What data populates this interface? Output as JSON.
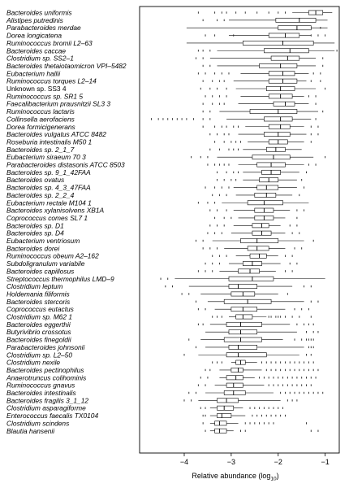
{
  "chart_data": {
    "type": "boxplot",
    "orientation": "horizontal",
    "xlabel": "Relative abundance (log",
    "xlabel_sub": "10",
    "xlabel_end": ")",
    "x_ticks": [
      -4,
      -3,
      -2,
      -1
    ],
    "x_tick_labels": [
      "−4",
      "−3",
      "−2",
      "−1"
    ],
    "xlim": [
      -4.95,
      -0.7
    ],
    "grid": false,
    "categories": [
      {
        "name": "Bacteroides uniformis",
        "italic": true
      },
      {
        "name": "Alistipes putredinis",
        "italic": true
      },
      {
        "name": "Parabacteroides merdae",
        "italic": true
      },
      {
        "name": "Dorea longicatena",
        "italic": true
      },
      {
        "name": "Ruminococcus bromii L2–63",
        "italic": true
      },
      {
        "name": "Bacteroides caccae",
        "italic": true
      },
      {
        "name": "Clostridium sp. SS2–1",
        "italic": true
      },
      {
        "name": "Bacteroides thetaiotaomicron VPI–5482",
        "italic": true
      },
      {
        "name": "Eubacterium hallii",
        "italic": true
      },
      {
        "name": "Ruminococcus torques L2–14",
        "italic": true
      },
      {
        "name": "Unknown sp. SS3 4",
        "italic": false
      },
      {
        "name": "Ruminococcus sp. SR1 5",
        "italic": true
      },
      {
        "name": "Faecalibacterium prausnitzii SL3 3",
        "italic": true
      },
      {
        "name": "Ruminococcus lactaris",
        "italic": true
      },
      {
        "name": "Collinsella aerofaciens",
        "italic": true
      },
      {
        "name": "Dorea formicigenerans",
        "italic": true
      },
      {
        "name": "Bacteroides vulgatus ATCC 8482",
        "italic": true
      },
      {
        "name": "Roseburia intestinalis M50 1",
        "italic": true
      },
      {
        "name": "Bacteroides sp. 2_1_7",
        "italic": true
      },
      {
        "name": "Eubacterium siraeum 70 3",
        "italic": true
      },
      {
        "name": "Parabacteroides distasonis ATCC 8503",
        "italic": true
      },
      {
        "name": "Bacteroides sp. 9_1_42FAA",
        "italic": true
      },
      {
        "name": "Bacteroides ovatus",
        "italic": true
      },
      {
        "name": "Bacteroides sp. 4_3_47FAA",
        "italic": true
      },
      {
        "name": "Bacteroides sp. 2_2_4",
        "italic": true
      },
      {
        "name": "Eubacterium rectale M104 1",
        "italic": true
      },
      {
        "name": "Bacteroides xylanisolvens XB1A",
        "italic": true
      },
      {
        "name": "Coprococcus comes SL7 1",
        "italic": true
      },
      {
        "name": "Bacteroides sp. D1",
        "italic": true
      },
      {
        "name": "Bacteroides sp. D4",
        "italic": true
      },
      {
        "name": "Eubacterium ventriosum",
        "italic": true
      },
      {
        "name": "Bacteroides dorei",
        "italic": true
      },
      {
        "name": "Ruminococcus obeum A2–162",
        "italic": true
      },
      {
        "name": "Subdoligranulum variabile",
        "italic": true
      },
      {
        "name": "Bacteroides capillosus",
        "italic": true
      },
      {
        "name": "Streptococcus thermophilus LMD–9",
        "italic": true
      },
      {
        "name": "Clostridium leptum",
        "italic": true
      },
      {
        "name": "Holdemania filiformis",
        "italic": true
      },
      {
        "name": "Bacteroides stercoris",
        "italic": true
      },
      {
        "name": "Coprococcus eutactus",
        "italic": true
      },
      {
        "name": "Clostridium sp. M62 1",
        "italic": true
      },
      {
        "name": "Bacteroides eggerthii",
        "italic": true
      },
      {
        "name": "Butyrivibrio crossotus",
        "italic": true
      },
      {
        "name": "Bacteroides finegoldii",
        "italic": true
      },
      {
        "name": "Parabacteroides johnsonii",
        "italic": true
      },
      {
        "name": "Clostridium sp. L2–50",
        "italic": true
      },
      {
        "name": "Clostridium nexile",
        "italic": true
      },
      {
        "name": "Bacteroides pectinophilus",
        "italic": true
      },
      {
        "name": "Anaerotruncus colihominis",
        "italic": true
      },
      {
        "name": "Ruminococcus gnavus",
        "italic": true
      },
      {
        "name": "Bacteroides intestinalis",
        "italic": true
      },
      {
        "name": "Bacteroides fragilis 3_1_12",
        "italic": true
      },
      {
        "name": "Clostridium asparagiforme",
        "italic": true
      },
      {
        "name": "Enterococcus faecalis TX0104",
        "italic": true
      },
      {
        "name": "Clostridium scindens",
        "italic": true
      },
      {
        "name": "Blautia hansenii",
        "italic": true
      }
    ],
    "boxes": [
      [
        -1.7,
        -1.35,
        -1.2,
        -1.05,
        -0.85
      ],
      [
        -3.05,
        -2.05,
        -1.55,
        -1.2,
        -0.95
      ],
      [
        -3.95,
        -2.0,
        -1.6,
        -1.3,
        -0.95
      ],
      [
        -3.05,
        -2.2,
        -1.85,
        -1.55,
        -1.3
      ],
      [
        -3.95,
        -2.75,
        -1.9,
        -1.25,
        -0.8
      ],
      [
        -3.3,
        -2.3,
        -1.75,
        -1.35,
        -0.8
      ],
      [
        -3.45,
        -2.15,
        -1.8,
        -1.55,
        -1.2
      ],
      [
        -3.3,
        -2.4,
        -1.95,
        -1.6,
        -1.2
      ],
      [
        -2.8,
        -2.2,
        -1.9,
        -1.65,
        -1.35
      ],
      [
        -2.95,
        -2.2,
        -1.9,
        -1.6,
        -1.4
      ],
      [
        -2.9,
        -2.25,
        -1.95,
        -1.65,
        -1.2
      ],
      [
        -2.8,
        -2.2,
        -1.95,
        -1.7,
        -1.45
      ],
      [
        -2.85,
        -2.1,
        -1.85,
        -1.65,
        -1.35
      ],
      [
        -3.25,
        -2.6,
        -2.0,
        -1.6,
        -1.15
      ],
      [
        -3.1,
        -2.3,
        -1.95,
        -1.7,
        -1.3
      ],
      [
        -2.7,
        -2.2,
        -1.95,
        -1.75,
        -1.45
      ],
      [
        -2.85,
        -2.3,
        -2.0,
        -1.75,
        -1.4
      ],
      [
        -2.65,
        -2.2,
        -2.0,
        -1.8,
        -1.45
      ],
      [
        -2.75,
        -2.25,
        -2.05,
        -1.85,
        -1.5
      ],
      [
        -3.3,
        -2.55,
        -2.1,
        -1.75,
        -1.25
      ],
      [
        -2.85,
        -2.45,
        -2.15,
        -1.85,
        -1.45
      ],
      [
        -2.75,
        -2.35,
        -2.15,
        -1.95,
        -1.55
      ],
      [
        -2.75,
        -2.4,
        -2.2,
        -2.0,
        -1.6
      ],
      [
        -2.95,
        -2.45,
        -2.25,
        -2.0,
        -1.6
      ],
      [
        -2.9,
        -2.5,
        -2.25,
        -2.05,
        -1.7
      ],
      [
        -3.2,
        -2.65,
        -2.3,
        -1.9,
        -1.35
      ],
      [
        -2.95,
        -2.5,
        -2.3,
        -2.1,
        -1.75
      ],
      [
        -2.85,
        -2.5,
        -2.3,
        -2.1,
        -1.85
      ],
      [
        -2.95,
        -2.55,
        -2.35,
        -2.2,
        -1.95
      ],
      [
        -3.0,
        -2.55,
        -2.35,
        -2.15,
        -1.85
      ],
      [
        -3.4,
        -2.8,
        -2.45,
        -2.0,
        -1.45
      ],
      [
        -3.15,
        -2.65,
        -2.45,
        -2.2,
        -1.85
      ],
      [
        -2.9,
        -2.6,
        -2.4,
        -2.25,
        -2.0
      ],
      [
        -3.05,
        -2.75,
        -2.55,
        -2.35,
        -1.95
      ],
      [
        -3.25,
        -2.85,
        -2.6,
        -2.4,
        -2.05
      ],
      [
        -4.2,
        -3.05,
        -2.55,
        -2.1,
        -1.0
      ],
      [
        -3.9,
        -3.05,
        -2.85,
        -2.45,
        -1.7
      ],
      [
        -3.65,
        -3.0,
        -2.75,
        -2.5,
        -2.0
      ],
      [
        -3.5,
        -3.15,
        -2.65,
        -2.15,
        -1.45
      ],
      [
        -3.35,
        -3.0,
        -2.75,
        -2.45,
        -1.85
      ],
      [
        -3.05,
        -2.9,
        -2.75,
        -2.55,
        -2.25
      ],
      [
        -3.45,
        -3.1,
        -2.8,
        -2.35,
        -1.75
      ],
      [
        -3.55,
        -3.05,
        -2.8,
        -2.45,
        -1.6
      ],
      [
        -3.65,
        -3.15,
        -2.8,
        -2.35,
        -1.9
      ],
      [
        -3.55,
        -3.05,
        -2.85,
        -2.45,
        -1.45
      ],
      [
        -3.7,
        -3.1,
        -2.85,
        -2.25,
        -1.55
      ],
      [
        -3.0,
        -2.9,
        -2.8,
        -2.7,
        -2.45
      ],
      [
        -3.25,
        -3.0,
        -2.85,
        -2.75,
        -2.35
      ],
      [
        -3.25,
        -3.1,
        -2.9,
        -2.75,
        -2.5
      ],
      [
        -3.35,
        -3.1,
        -2.95,
        -2.75,
        -2.3
      ],
      [
        -3.55,
        -3.15,
        -2.95,
        -2.7,
        -2.1
      ],
      [
        -3.7,
        -3.3,
        -3.1,
        -2.85,
        -1.95
      ],
      [
        -3.45,
        -3.3,
        -3.15,
        -2.95,
        -2.75
      ],
      [
        -3.45,
        -3.3,
        -3.2,
        -3.0,
        -2.7
      ],
      [
        -3.45,
        -3.35,
        -3.25,
        -3.1,
        -2.85
      ],
      [
        -3.45,
        -3.35,
        -3.25,
        -3.1,
        -2.95
      ]
    ],
    "outliers": [
      [
        -3.7,
        -3.35,
        -3.2,
        -3.1,
        -2.9,
        -2.7,
        -2.45,
        -2.2,
        -2.0,
        -1.85
      ],
      [
        -3.6,
        -3.3,
        -3.15
      ],
      [
        -1.1
      ],
      [
        -3.55,
        -3.35,
        -2.95,
        -1.3,
        -1.15,
        -1.0
      ],
      [],
      [
        -3.7,
        -3.6,
        -3.45,
        -0.75
      ],
      [
        -3.75,
        -3.6,
        -1.05
      ],
      [
        -3.6,
        -3.45,
        -1.05
      ],
      [
        -3.7,
        -3.55,
        -3.35,
        -3.2,
        -3.05,
        -1.25,
        -1.1
      ],
      [
        -3.6,
        -3.4,
        -3.25,
        -3.15,
        -1.3,
        -1.1
      ],
      [
        -3.65,
        -3.45,
        -3.3,
        -3.1,
        -1.0
      ],
      [
        -3.55,
        -3.4,
        -3.25,
        -3.1,
        -1.35,
        -1.2
      ],
      [
        -3.6,
        -3.4,
        -3.25,
        -3.15,
        -1.2
      ],
      [
        -3.6,
        -3.45,
        -1.05
      ],
      [
        -4.7,
        -4.55,
        -4.45,
        -4.35,
        -4.25,
        -4.15,
        -4.05,
        -3.95,
        -3.8,
        -3.6,
        -3.45,
        -1.2
      ],
      [
        -3.6,
        -3.35,
        -3.2,
        -3.1,
        -2.95,
        -2.85,
        -1.3,
        -1.15
      ],
      [
        -3.45,
        -3.3,
        -3.15,
        -3.05,
        -1.3,
        -1.15
      ],
      [
        -3.35,
        -3.15,
        -3.0,
        -2.9,
        -2.8,
        -1.3
      ],
      [
        -3.45,
        -3.25,
        -3.05,
        -2.95,
        -2.85
      ],
      [
        -3.85,
        -3.65,
        -3.5,
        -1.0
      ],
      [
        -3.5,
        -3.35,
        -3.25,
        -3.15,
        -3.05,
        -1.35,
        -1.2
      ],
      [
        -3.3,
        -3.1,
        -2.95,
        -2.85,
        -1.4
      ],
      [
        -3.3,
        -3.15,
        -3.0,
        -2.9,
        -1.5
      ],
      [
        -3.55,
        -3.35,
        -3.2,
        -3.05,
        -1.45
      ],
      [
        -3.4,
        -3.25,
        -3.1,
        -1.55
      ],
      [
        -3.7,
        -3.5,
        -3.35
      ],
      [
        -3.45,
        -3.3,
        -3.1,
        -1.6,
        -1.45
      ],
      [
        -3.35,
        -3.15,
        -3.0,
        -1.6
      ],
      [
        -3.45,
        -3.3,
        -3.15,
        -1.75,
        -1.6
      ],
      [
        -3.5,
        -3.35,
        -3.2,
        -1.7,
        -1.55
      ],
      [
        -3.75,
        -3.6,
        -1.25
      ],
      [
        -3.6,
        -3.45,
        -3.3,
        -1.65,
        -1.5
      ],
      [
        -3.4,
        -3.25,
        -3.1,
        -1.85,
        -1.7
      ],
      [
        -3.55,
        -3.4,
        -3.25,
        -1.75,
        -1.6
      ],
      [
        -3.7,
        -3.55,
        -3.4,
        -1.85,
        -1.7
      ],
      [
        -4.5,
        -4.35
      ],
      [
        -4.4,
        -4.25,
        -1.45,
        -1.3
      ],
      [
        -4.05,
        -3.9,
        -1.8
      ],
      [
        -3.75,
        -1.3,
        -1.15
      ],
      [
        -3.7,
        -3.55,
        -1.65,
        -1.5,
        -1.35
      ],
      [
        -3.4,
        -3.3,
        -3.2,
        -2.2,
        -2.15,
        -2.05,
        -2.0,
        -1.95,
        -1.85,
        -1.7,
        -1.55,
        -1.3
      ],
      [
        -3.7,
        -3.6,
        -1.6,
        -1.45,
        -1.35,
        -1.25
      ],
      [
        -1.4,
        -1.25,
        -1.15
      ],
      [
        -3.9,
        -1.65,
        -1.5,
        -1.4,
        -1.35,
        -1.3,
        -1.25
      ],
      [
        -3.75,
        -1.35,
        -1.3,
        -1.25
      ],
      [
        -4.0,
        -1.4,
        -1.3
      ],
      [
        -3.4,
        -3.3,
        -3.2,
        -2.35,
        -2.25,
        -2.15,
        -2.05,
        -1.95,
        -1.85,
        -1.75,
        -1.65,
        -1.55,
        -1.45,
        -1.35,
        -1.25
      ],
      [
        -3.55,
        -3.45,
        -2.25,
        -2.15,
        -2.05,
        -1.95,
        -1.85,
        -1.75,
        -1.65,
        -1.55,
        -1.45,
        -1.35,
        -1.25,
        -1.15
      ],
      [
        -3.65,
        -3.5,
        -2.4,
        -2.3,
        -2.2,
        -2.1,
        -2.0,
        -1.9,
        -1.8,
        -1.7,
        -1.6,
        -1.5,
        -1.4,
        -1.3,
        -1.2
      ],
      [
        -3.7,
        -3.55,
        -2.2,
        -2.1,
        -2.0,
        -1.9,
        -1.8,
        -1.7,
        -1.6,
        -1.5,
        -1.4,
        -1.3
      ],
      [
        -3.9,
        -3.75,
        -1.95,
        -1.85,
        -1.75,
        -1.65,
        -1.55,
        -1.45,
        -1.35,
        -1.25,
        -1.15,
        -1.05
      ],
      [
        -4.0,
        -3.85,
        -1.8,
        -1.7,
        -1.6
      ],
      [
        -3.65,
        -3.55,
        -2.6,
        -2.5,
        -2.4,
        -2.3,
        -2.2,
        -2.1,
        -2.0,
        -1.9
      ],
      [
        -3.6,
        -3.55,
        -2.55,
        -2.45,
        -2.35,
        -2.25,
        -2.15,
        -2.05,
        -1.95,
        -1.85
      ],
      [
        -3.6,
        -2.7,
        -2.6,
        -2.5,
        -2.4,
        -2.3,
        -2.2,
        -2.1,
        -1.4
      ],
      [
        -3.55,
        -2.8,
        -2.7,
        -1.3,
        -1.15
      ]
    ]
  }
}
